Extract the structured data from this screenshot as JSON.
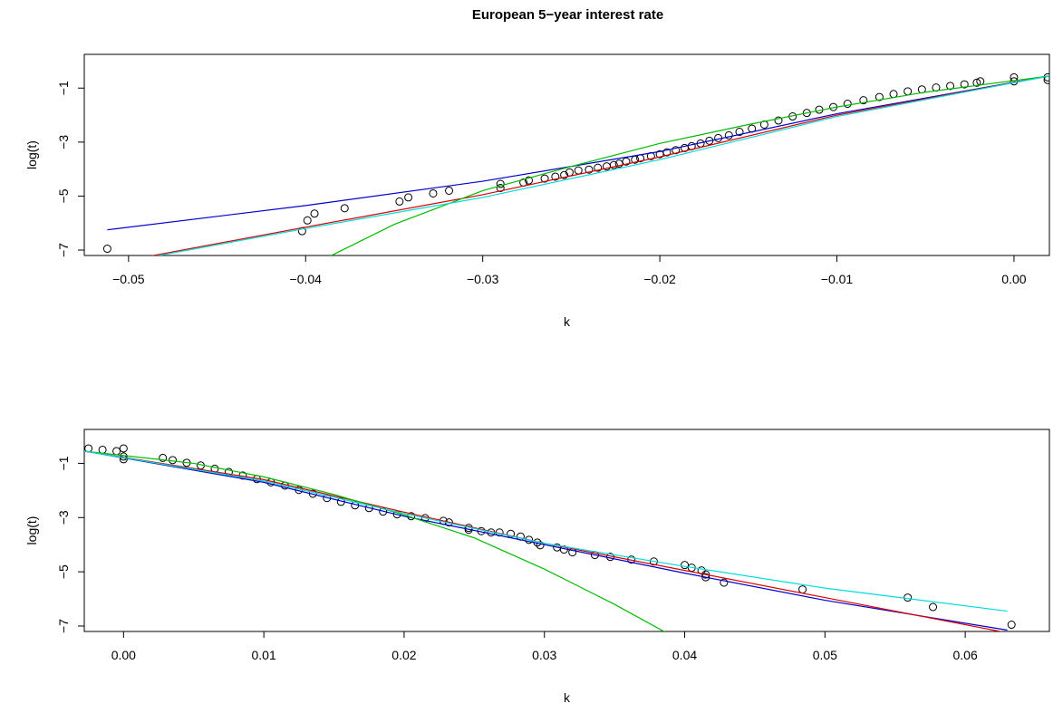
{
  "chart_data": [
    {
      "type": "scatter",
      "title": "European 5−year interest rate",
      "xlabel": "k",
      "ylabel": "log(t)",
      "xlim": [
        -0.0525,
        0.002
      ],
      "ylim": [
        -7.2,
        0.25
      ],
      "xticks": [
        -0.05,
        -0.04,
        -0.03,
        -0.02,
        -0.01,
        0.0
      ],
      "xtick_labels": [
        "−0.05",
        "−0.04",
        "−0.03",
        "−0.02",
        "−0.01",
        "0.00"
      ],
      "yticks": [
        -1,
        -3,
        -5,
        -7
      ],
      "ytick_labels": [
        "−1",
        "−3",
        "−5",
        "−7"
      ],
      "points": [
        {
          "x": -0.0512,
          "y": -6.95
        },
        {
          "x": -0.0402,
          "y": -6.3
        },
        {
          "x": -0.0399,
          "y": -5.9
        },
        {
          "x": -0.0395,
          "y": -5.65
        },
        {
          "x": -0.0378,
          "y": -5.45
        },
        {
          "x": -0.0347,
          "y": -5.2
        },
        {
          "x": -0.0342,
          "y": -5.05
        },
        {
          "x": -0.0328,
          "y": -4.9
        },
        {
          "x": -0.0319,
          "y": -4.8
        },
        {
          "x": -0.029,
          "y": -4.7
        },
        {
          "x": -0.029,
          "y": -4.55
        },
        {
          "x": -0.0277,
          "y": -4.5
        },
        {
          "x": -0.0274,
          "y": -4.42
        },
        {
          "x": -0.0265,
          "y": -4.35
        },
        {
          "x": -0.0259,
          "y": -4.28
        },
        {
          "x": -0.0254,
          "y": -4.22
        },
        {
          "x": -0.0251,
          "y": -4.12
        },
        {
          "x": -0.0246,
          "y": -4.05
        },
        {
          "x": -0.024,
          "y": -4.02
        },
        {
          "x": -0.0235,
          "y": -3.95
        },
        {
          "x": -0.023,
          "y": -3.9
        },
        {
          "x": -0.0226,
          "y": -3.85
        },
        {
          "x": -0.0223,
          "y": -3.8
        },
        {
          "x": -0.0219,
          "y": -3.72
        },
        {
          "x": -0.0214,
          "y": -3.65
        },
        {
          "x": -0.0211,
          "y": -3.6
        },
        {
          "x": -0.0205,
          "y": -3.52
        },
        {
          "x": -0.02,
          "y": -3.45
        },
        {
          "x": -0.0196,
          "y": -3.38
        },
        {
          "x": -0.0191,
          "y": -3.3
        },
        {
          "x": -0.0186,
          "y": -3.22
        },
        {
          "x": -0.0182,
          "y": -3.15
        },
        {
          "x": -0.0177,
          "y": -3.05
        },
        {
          "x": -0.0172,
          "y": -2.95
        },
        {
          "x": -0.0167,
          "y": -2.85
        },
        {
          "x": -0.0161,
          "y": -2.75
        },
        {
          "x": -0.0155,
          "y": -2.62
        },
        {
          "x": -0.0148,
          "y": -2.5
        },
        {
          "x": -0.0141,
          "y": -2.35
        },
        {
          "x": -0.0133,
          "y": -2.2
        },
        {
          "x": -0.0125,
          "y": -2.05
        },
        {
          "x": -0.0117,
          "y": -1.92
        },
        {
          "x": -0.011,
          "y": -1.8
        },
        {
          "x": -0.0102,
          "y": -1.7
        },
        {
          "x": -0.0094,
          "y": -1.58
        },
        {
          "x": -0.0085,
          "y": -1.45
        },
        {
          "x": -0.0076,
          "y": -1.33
        },
        {
          "x": -0.0068,
          "y": -1.22
        },
        {
          "x": -0.006,
          "y": -1.12
        },
        {
          "x": -0.0052,
          "y": -1.05
        },
        {
          "x": -0.0044,
          "y": -0.98
        },
        {
          "x": -0.0036,
          "y": -0.92
        },
        {
          "x": -0.0028,
          "y": -0.86
        },
        {
          "x": -0.0021,
          "y": -0.8
        },
        {
          "x": -0.0019,
          "y": -0.75
        },
        {
          "x": 0.0,
          "y": -0.6
        },
        {
          "x": 0.0,
          "y": -0.75
        },
        {
          "x": 0.0019,
          "y": -0.6
        },
        {
          "x": 0.0019,
          "y": -0.7
        }
      ],
      "series": [
        {
          "color": "#0000cc",
          "x": [
            -0.0512,
            -0.04,
            -0.03,
            -0.02,
            -0.01,
            0.002
          ],
          "y": [
            -6.25,
            -5.35,
            -4.45,
            -3.35,
            -1.95,
            -0.55
          ]
        },
        {
          "color": "#dd0000",
          "x": [
            -0.049,
            -0.04,
            -0.03,
            -0.02,
            -0.01,
            0.002
          ],
          "y": [
            -7.25,
            -6.15,
            -4.95,
            -3.55,
            -2.0,
            -0.55
          ]
        },
        {
          "color": "#00bb00",
          "x": [
            -0.0387,
            -0.035,
            -0.03,
            -0.025,
            -0.02,
            -0.015,
            -0.01,
            -0.005,
            0.002
          ],
          "y": [
            -7.25,
            -6.05,
            -4.8,
            -3.9,
            -3.05,
            -2.35,
            -1.7,
            -1.15,
            -0.55
          ]
        },
        {
          "color": "#00dddd",
          "x": [
            -0.0487,
            -0.04,
            -0.03,
            -0.02,
            -0.01,
            0.002
          ],
          "y": [
            -7.25,
            -6.2,
            -5.05,
            -3.65,
            -2.05,
            -0.55
          ]
        }
      ]
    },
    {
      "type": "scatter",
      "title": "",
      "xlabel": "k",
      "ylabel": "log(t)",
      "xlim": [
        -0.0028,
        0.066
      ],
      "ylim": [
        -7.2,
        0.25
      ],
      "xticks": [
        0.0,
        0.01,
        0.02,
        0.03,
        0.04,
        0.05,
        0.06
      ],
      "xtick_labels": [
        "0.00",
        "0.01",
        "0.02",
        "0.03",
        "0.04",
        "0.05",
        "0.06"
      ],
      "yticks": [
        -1,
        -3,
        -5,
        -7
      ],
      "ytick_labels": [
        "−1",
        "−3",
        "−5",
        "−7"
      ],
      "points": [
        {
          "x": -0.0025,
          "y": -0.45
        },
        {
          "x": -0.0015,
          "y": -0.5
        },
        {
          "x": -0.0005,
          "y": -0.55
        },
        {
          "x": 0.0,
          "y": -0.45
        },
        {
          "x": 0.0,
          "y": -0.75
        },
        {
          "x": 0.0,
          "y": -0.85
        },
        {
          "x": 0.0028,
          "y": -0.8
        },
        {
          "x": 0.0035,
          "y": -0.88
        },
        {
          "x": 0.0045,
          "y": -0.98
        },
        {
          "x": 0.0055,
          "y": -1.08
        },
        {
          "x": 0.0065,
          "y": -1.2
        },
        {
          "x": 0.0075,
          "y": -1.32
        },
        {
          "x": 0.0085,
          "y": -1.45
        },
        {
          "x": 0.0095,
          "y": -1.58
        },
        {
          "x": 0.0105,
          "y": -1.7
        },
        {
          "x": 0.0115,
          "y": -1.82
        },
        {
          "x": 0.0125,
          "y": -1.98
        },
        {
          "x": 0.0135,
          "y": -2.12
        },
        {
          "x": 0.0145,
          "y": -2.28
        },
        {
          "x": 0.0155,
          "y": -2.42
        },
        {
          "x": 0.0165,
          "y": -2.55
        },
        {
          "x": 0.0175,
          "y": -2.65
        },
        {
          "x": 0.0185,
          "y": -2.78
        },
        {
          "x": 0.0195,
          "y": -2.88
        },
        {
          "x": 0.0205,
          "y": -2.95
        },
        {
          "x": 0.0215,
          "y": -3.02
        },
        {
          "x": 0.0228,
          "y": -3.12
        },
        {
          "x": 0.0232,
          "y": -3.18
        },
        {
          "x": 0.0246,
          "y": -3.38
        },
        {
          "x": 0.0246,
          "y": -3.45
        },
        {
          "x": 0.0255,
          "y": -3.5
        },
        {
          "x": 0.0262,
          "y": -3.55
        },
        {
          "x": 0.0268,
          "y": -3.55
        },
        {
          "x": 0.0276,
          "y": -3.6
        },
        {
          "x": 0.0283,
          "y": -3.7
        },
        {
          "x": 0.0289,
          "y": -3.82
        },
        {
          "x": 0.0295,
          "y": -3.92
        },
        {
          "x": 0.0297,
          "y": -4.02
        },
        {
          "x": 0.0309,
          "y": -4.1
        },
        {
          "x": 0.0314,
          "y": -4.18
        },
        {
          "x": 0.032,
          "y": -4.28
        },
        {
          "x": 0.0336,
          "y": -4.38
        },
        {
          "x": 0.0347,
          "y": -4.45
        },
        {
          "x": 0.0362,
          "y": -4.55
        },
        {
          "x": 0.0378,
          "y": -4.62
        },
        {
          "x": 0.04,
          "y": -4.75
        },
        {
          "x": 0.0405,
          "y": -4.85
        },
        {
          "x": 0.0412,
          "y": -4.95
        },
        {
          "x": 0.0415,
          "y": -5.1
        },
        {
          "x": 0.0415,
          "y": -5.2
        },
        {
          "x": 0.0428,
          "y": -5.4
        },
        {
          "x": 0.0484,
          "y": -5.65
        },
        {
          "x": 0.0559,
          "y": -5.95
        },
        {
          "x": 0.0577,
          "y": -6.3
        },
        {
          "x": 0.0633,
          "y": -6.95
        }
      ],
      "series": [
        {
          "color": "#0000cc",
          "x": [
            -0.0028,
            0.01,
            0.02,
            0.03,
            0.04,
            0.05,
            0.063
          ],
          "y": [
            -0.55,
            -1.7,
            -2.95,
            -4.0,
            -5.05,
            -6.05,
            -7.15
          ]
        },
        {
          "color": "#dd0000",
          "x": [
            -0.0028,
            0.01,
            0.02,
            0.03,
            0.04,
            0.05,
            0.063
          ],
          "y": [
            -0.55,
            -1.6,
            -2.8,
            -3.95,
            -4.95,
            -5.95,
            -7.25
          ]
        },
        {
          "color": "#00bb00",
          "x": [
            -0.0028,
            0.005,
            0.01,
            0.015,
            0.02,
            0.025,
            0.03,
            0.035,
            0.0387
          ],
          "y": [
            -0.55,
            -1.0,
            -1.5,
            -2.15,
            -2.9,
            -3.75,
            -4.9,
            -6.2,
            -7.25
          ]
        },
        {
          "color": "#00dddd",
          "x": [
            -0.0028,
            0.01,
            0.02,
            0.03,
            0.04,
            0.05,
            0.063
          ],
          "y": [
            -0.55,
            -1.65,
            -2.85,
            -3.95,
            -4.8,
            -5.6,
            -6.45
          ]
        }
      ]
    }
  ]
}
